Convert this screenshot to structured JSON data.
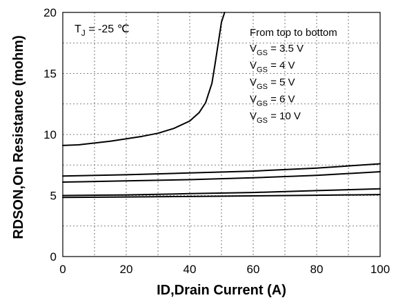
{
  "chart_data": {
    "type": "line",
    "title": "",
    "xlabel": "ID,Drain Current (A)",
    "ylabel": "RDSON,On Resistance (mohm)",
    "xlim": [
      0,
      100
    ],
    "ylim": [
      0,
      20
    ],
    "x_ticks": [
      "0",
      "20",
      "40",
      "60",
      "80",
      "100"
    ],
    "y_ticks": [
      "0",
      "5",
      "10",
      "15",
      "20"
    ],
    "grid": true,
    "grid_style": "dotted",
    "condition": {
      "prefix": "T",
      "subscript": "J",
      "text": " = -25 ℃"
    },
    "legend": {
      "header": "From top to bottom",
      "placement": "top-right",
      "entries": [
        {
          "prefix": "V",
          "subscript": "GS",
          "text": " = 3.5 V"
        },
        {
          "prefix": "V",
          "subscript": "GS",
          "text": " = 4 V"
        },
        {
          "prefix": "V",
          "subscript": "GS",
          "text": " = 5 V"
        },
        {
          "prefix": "V",
          "subscript": "GS",
          "text": " = 6 V"
        },
        {
          "prefix": "V",
          "subscript": "GS",
          "text": " = 10 V"
        }
      ]
    },
    "series": [
      {
        "name": "VGS = 3.5 V",
        "x": [
          0,
          5,
          10,
          15,
          20,
          25,
          30,
          35,
          40,
          43,
          45,
          47,
          48,
          49,
          50,
          51
        ],
        "y": [
          9.1,
          9.15,
          9.3,
          9.45,
          9.65,
          9.85,
          10.1,
          10.5,
          11.1,
          11.8,
          12.6,
          14.2,
          15.8,
          17.5,
          19.2,
          20.0
        ]
      },
      {
        "name": "VGS = 4 V",
        "x": [
          0,
          20,
          40,
          60,
          80,
          100
        ],
        "y": [
          6.6,
          6.7,
          6.85,
          7.0,
          7.25,
          7.6
        ]
      },
      {
        "name": "VGS = 5 V",
        "x": [
          0,
          20,
          40,
          60,
          80,
          100
        ],
        "y": [
          6.1,
          6.2,
          6.3,
          6.45,
          6.65,
          6.95
        ]
      },
      {
        "name": "VGS = 6 V",
        "x": [
          0,
          20,
          40,
          60,
          80,
          100
        ],
        "y": [
          5.0,
          5.05,
          5.15,
          5.25,
          5.4,
          5.55
        ]
      },
      {
        "name": "VGS = 10 V",
        "x": [
          0,
          20,
          40,
          60,
          80,
          100
        ],
        "y": [
          4.85,
          4.88,
          4.92,
          4.97,
          5.02,
          5.08
        ]
      }
    ],
    "line_color": "#000000"
  }
}
